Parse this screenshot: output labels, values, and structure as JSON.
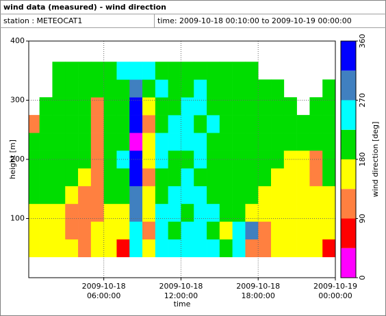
{
  "header": {
    "title": "wind data (measured) - wind direction",
    "station": "station : METEOCAT1",
    "time": "time: 2009-10-18 00:10:00 to 2009-10-19 00:00:00"
  },
  "chart_data": {
    "type": "heatmap",
    "x_label": "time",
    "y_label": "height [m]",
    "colorbar_label": "wind direction [deg]",
    "xlim": [
      "2009-10-18 00:10:00",
      "2009-10-19 00:00:00"
    ],
    "xticks": [
      "2009-10-18 06:00:00",
      "2009-10-18 12:00:00",
      "2009-10-18 18:00:00",
      "2009-10-19 00:00:00"
    ],
    "ylim": [
      0,
      400
    ],
    "yticks": [
      100,
      200,
      300,
      400
    ],
    "clim": [
      0,
      360
    ],
    "cticks": [
      0,
      90,
      180,
      270,
      360
    ],
    "color_bounds": [
      0,
      45,
      90,
      135,
      180,
      225,
      270,
      315,
      360
    ],
    "colors": [
      "#ff00ff",
      "#ff0000",
      "#ff8040",
      "#ffff00",
      "#00dd00",
      "#00ffff",
      "#4080c0",
      "#0000ff"
    ],
    "x": [
      "2009-10-18 00:10:00",
      "2009-10-18 01:00:00",
      "2009-10-18 02:00:00",
      "2009-10-18 03:00:00",
      "2009-10-18 04:00:00",
      "2009-10-18 05:00:00",
      "2009-10-18 06:00:00",
      "2009-10-18 07:00:00",
      "2009-10-18 08:00:00",
      "2009-10-18 09:00:00",
      "2009-10-18 10:00:00",
      "2009-10-18 11:00:00",
      "2009-10-18 12:00:00",
      "2009-10-18 13:00:00",
      "2009-10-18 14:00:00",
      "2009-10-18 15:00:00",
      "2009-10-18 16:00:00",
      "2009-10-18 17:00:00",
      "2009-10-18 18:00:00",
      "2009-10-18 19:00:00",
      "2009-10-18 20:00:00",
      "2009-10-18 21:00:00",
      "2009-10-18 22:00:00",
      "2009-10-18 23:00:00"
    ],
    "y": [
      35,
      65,
      95,
      125,
      155,
      185,
      215,
      245,
      275,
      305,
      335
    ],
    "values": [
      [
        160,
        160,
        160,
        200,
        200,
        200,
        200,
        115,
        null,
        null,
        null
      ],
      [
        160,
        160,
        160,
        200,
        200,
        200,
        200,
        200,
        200,
        null,
        null
      ],
      [
        160,
        160,
        160,
        200,
        200,
        200,
        200,
        200,
        200,
        200,
        200
      ],
      [
        160,
        115,
        115,
        160,
        200,
        200,
        200,
        200,
        200,
        200,
        200
      ],
      [
        115,
        115,
        115,
        115,
        160,
        200,
        200,
        200,
        200,
        200,
        200
      ],
      [
        160,
        160,
        115,
        115,
        115,
        115,
        115,
        115,
        115,
        200,
        200
      ],
      [
        160,
        160,
        160,
        200,
        200,
        200,
        200,
        200,
        200,
        200,
        200
      ],
      [
        70,
        160,
        160,
        200,
        200,
        250,
        200,
        200,
        200,
        200,
        250
      ],
      [
        250,
        250,
        290,
        290,
        340,
        340,
        20,
        340,
        340,
        290,
        250
      ],
      [
        160,
        115,
        160,
        160,
        115,
        160,
        160,
        115,
        160,
        200,
        250
      ],
      [
        250,
        250,
        250,
        200,
        200,
        250,
        250,
        200,
        200,
        250,
        200
      ],
      [
        250,
        200,
        250,
        250,
        200,
        200,
        250,
        250,
        200,
        200,
        200
      ],
      [
        250,
        250,
        200,
        250,
        250,
        200,
        250,
        250,
        250,
        200,
        200
      ],
      [
        250,
        250,
        250,
        250,
        200,
        250,
        250,
        200,
        250,
        250,
        200
      ],
      [
        250,
        200,
        250,
        200,
        200,
        200,
        200,
        250,
        200,
        200,
        200
      ],
      [
        200,
        160,
        200,
        200,
        200,
        200,
        200,
        200,
        200,
        200,
        200
      ],
      [
        250,
        250,
        200,
        200,
        200,
        200,
        200,
        200,
        200,
        200,
        200
      ],
      [
        115,
        290,
        160,
        200,
        200,
        200,
        200,
        200,
        200,
        200,
        200
      ],
      [
        115,
        115,
        160,
        160,
        200,
        200,
        200,
        200,
        200,
        200,
        null
      ],
      [
        160,
        160,
        160,
        160,
        160,
        200,
        200,
        200,
        200,
        200,
        null
      ],
      [
        160,
        160,
        160,
        160,
        160,
        160,
        200,
        200,
        200,
        null,
        null
      ],
      [
        160,
        160,
        160,
        160,
        160,
        160,
        200,
        200,
        null,
        null,
        null
      ],
      [
        160,
        160,
        160,
        160,
        115,
        115,
        200,
        200,
        200,
        null,
        null
      ],
      [
        70,
        160,
        160,
        160,
        200,
        200,
        200,
        200,
        200,
        200,
        null
      ]
    ]
  }
}
